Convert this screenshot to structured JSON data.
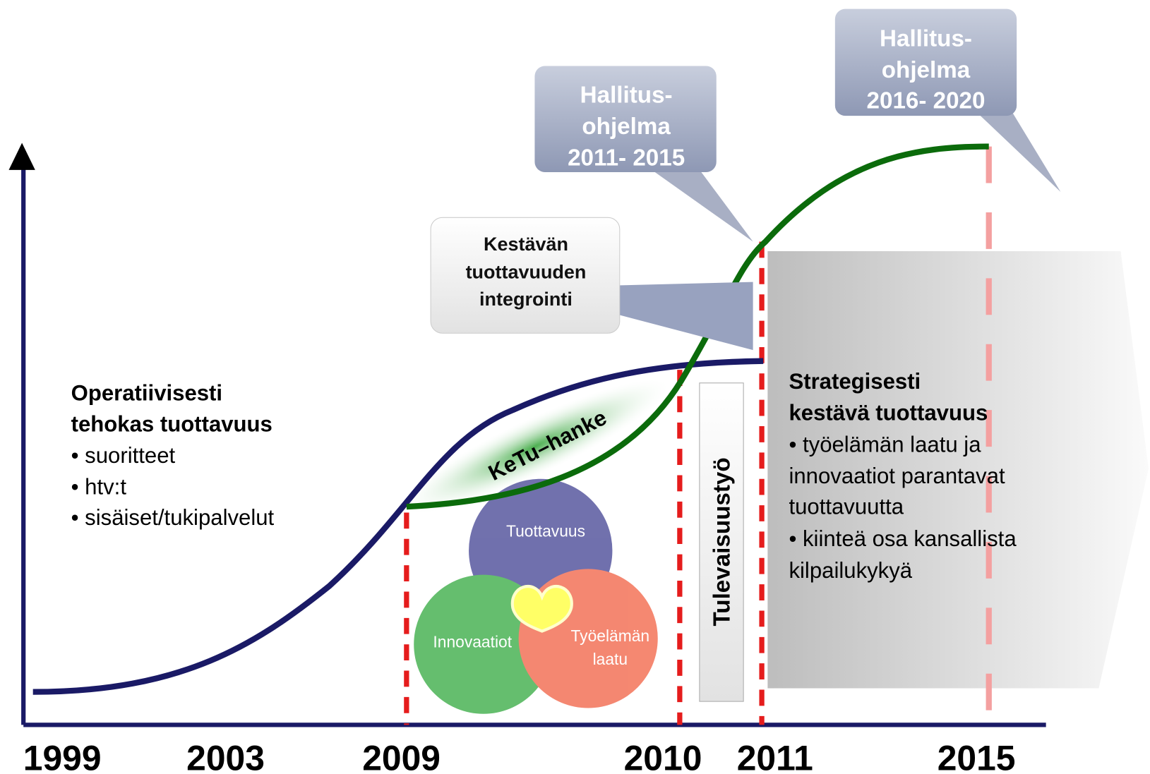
{
  "axis": {
    "years": [
      "1999",
      "2003",
      "2009",
      "2010",
      "2011",
      "2015"
    ]
  },
  "callouts": [
    {
      "lines": [
        "Hallitus-",
        "ohjelma",
        "2011- 2015"
      ]
    },
    {
      "lines": [
        "Hallitus-",
        "ohjelma",
        "2016- 2020"
      ]
    }
  ],
  "center_callout": {
    "lines": [
      "Kestävän",
      "tuottavuuden",
      "integrointi"
    ]
  },
  "left_block": {
    "heading": [
      "Operatiivisesti",
      "tehokas tuottavuus"
    ],
    "bullets": [
      "• suoritteet",
      "• htv:t",
      "• sisäiset/tukipalvelut"
    ]
  },
  "right_block": {
    "heading": [
      "Strategisesti",
      "kestävä tuottavuus"
    ],
    "lines": [
      "• työelämän laatu ja",
      "innovaatiot parantavat",
      "tuottavuutta",
      "• kiinteä osa kansallista",
      "kilpailukykyä"
    ]
  },
  "band_label": "KeTu–hanke",
  "future_label": "Tulevaisuustyö",
  "venn": {
    "top": "Tuottavuus",
    "left": "Innovaatiot",
    "right": [
      "Työelämän",
      "laatu"
    ]
  }
}
